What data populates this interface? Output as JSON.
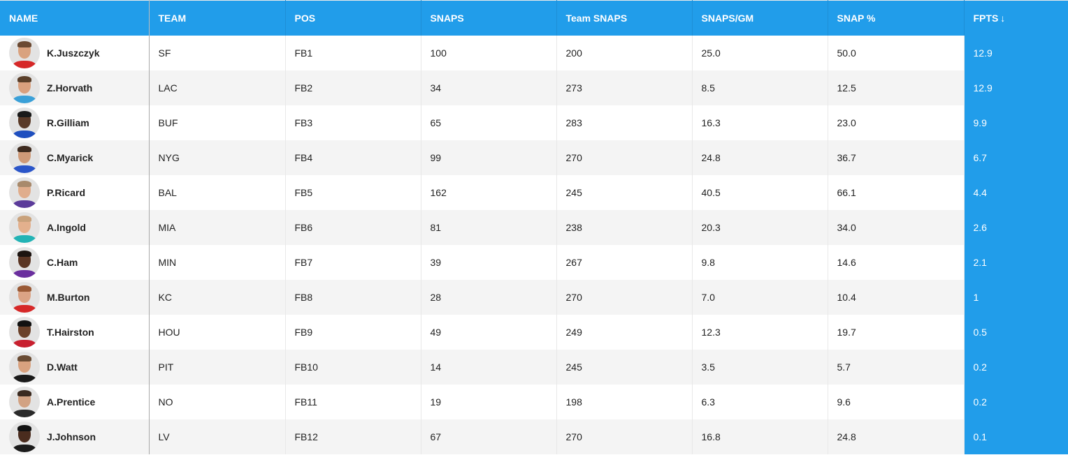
{
  "table": {
    "headers": {
      "name": "NAME",
      "team": "TEAM",
      "pos": "POS",
      "snaps": "SNAPS",
      "team_snaps": "Team SNAPS",
      "snaps_gm": "SNAPS/GM",
      "snap_pct": "SNAP %",
      "fpts": "FPTS",
      "fpts_sort_icon": "↓"
    },
    "sorted_column": "fpts",
    "sort_direction": "descending",
    "colors": {
      "header_bg": "#219dea",
      "sorted_column_bg": "#219dea",
      "row_alt_bg": "#f4f4f4",
      "row_bg": "#ffffff"
    },
    "rows": [
      {
        "name": "K.Juszczyk",
        "team": "SF",
        "pos": "FB1",
        "snaps": "100",
        "team_snaps": "200",
        "snaps_gm": "25.0",
        "snap_pct": "50.0",
        "fpts": "12.9",
        "avatar": {
          "skin": "#d9a27f",
          "hair": "#6b4a33",
          "jersey": "#d62828"
        }
      },
      {
        "name": "Z.Horvath",
        "team": "LAC",
        "pos": "FB2",
        "snaps": "34",
        "team_snaps": "273",
        "snaps_gm": "8.5",
        "snap_pct": "12.5",
        "fpts": "12.9",
        "avatar": {
          "skin": "#d9a07e",
          "hair": "#5a3f2a",
          "jersey": "#3aa0d8"
        }
      },
      {
        "name": "R.Gilliam",
        "team": "BUF",
        "pos": "FB3",
        "snaps": "65",
        "team_snaps": "283",
        "snaps_gm": "16.3",
        "snap_pct": "23.0",
        "fpts": "9.9",
        "avatar": {
          "skin": "#5a3a28",
          "hair": "#1a1a1a",
          "jersey": "#1f4fbf"
        }
      },
      {
        "name": "C.Myarick",
        "team": "NYG",
        "pos": "FB4",
        "snaps": "99",
        "team_snaps": "270",
        "snaps_gm": "24.8",
        "snap_pct": "36.7",
        "fpts": "6.7",
        "avatar": {
          "skin": "#cf9a78",
          "hair": "#3e2b1f",
          "jersey": "#2a55c9"
        }
      },
      {
        "name": "P.Ricard",
        "team": "BAL",
        "pos": "FB5",
        "snaps": "162",
        "team_snaps": "245",
        "snaps_gm": "40.5",
        "snap_pct": "66.1",
        "fpts": "4.4",
        "avatar": {
          "skin": "#e0ad8c",
          "hair": "#a88a6c",
          "jersey": "#5b3b9a"
        }
      },
      {
        "name": "A.Ingold",
        "team": "MIA",
        "pos": "FB6",
        "snaps": "81",
        "team_snaps": "238",
        "snaps_gm": "20.3",
        "snap_pct": "34.0",
        "fpts": "2.6",
        "avatar": {
          "skin": "#e3b08d",
          "hair": "#c9a27c",
          "jersey": "#22b3b5"
        }
      },
      {
        "name": "C.Ham",
        "team": "MIN",
        "pos": "FB7",
        "snaps": "39",
        "team_snaps": "267",
        "snaps_gm": "9.8",
        "snap_pct": "14.6",
        "fpts": "2.1",
        "avatar": {
          "skin": "#5b3624",
          "hair": "#1c1410",
          "jersey": "#6a2f9e"
        }
      },
      {
        "name": "M.Burton",
        "team": "KC",
        "pos": "FB8",
        "snaps": "28",
        "team_snaps": "270",
        "snaps_gm": "7.0",
        "snap_pct": "10.4",
        "fpts": "1",
        "avatar": {
          "skin": "#dba385",
          "hair": "#9a5a36",
          "jersey": "#d62828"
        }
      },
      {
        "name": "T.Hairston",
        "team": "HOU",
        "pos": "FB9",
        "snaps": "49",
        "team_snaps": "249",
        "snaps_gm": "12.3",
        "snap_pct": "19.7",
        "fpts": "0.5",
        "avatar": {
          "skin": "#6b412a",
          "hair": "#111111",
          "jersey": "#c8202f"
        }
      },
      {
        "name": "D.Watt",
        "team": "PIT",
        "pos": "FB10",
        "snaps": "14",
        "team_snaps": "245",
        "snaps_gm": "3.5",
        "snap_pct": "5.7",
        "fpts": "0.2",
        "avatar": {
          "skin": "#d9a27f",
          "hair": "#6a4c34",
          "jersey": "#1a1a1a"
        }
      },
      {
        "name": "A.Prentice",
        "team": "NO",
        "pos": "FB11",
        "snaps": "19",
        "team_snaps": "198",
        "snaps_gm": "6.3",
        "snap_pct": "9.6",
        "fpts": "0.2",
        "avatar": {
          "skin": "#d2a283",
          "hair": "#3a2a20",
          "jersey": "#2a2a2a"
        }
      },
      {
        "name": "J.Johnson",
        "team": "LV",
        "pos": "FB12",
        "snaps": "67",
        "team_snaps": "270",
        "snaps_gm": "16.8",
        "snap_pct": "24.8",
        "fpts": "0.1",
        "avatar": {
          "skin": "#4a2c1e",
          "hair": "#121212",
          "jersey": "#1b1b1b"
        }
      }
    ]
  }
}
